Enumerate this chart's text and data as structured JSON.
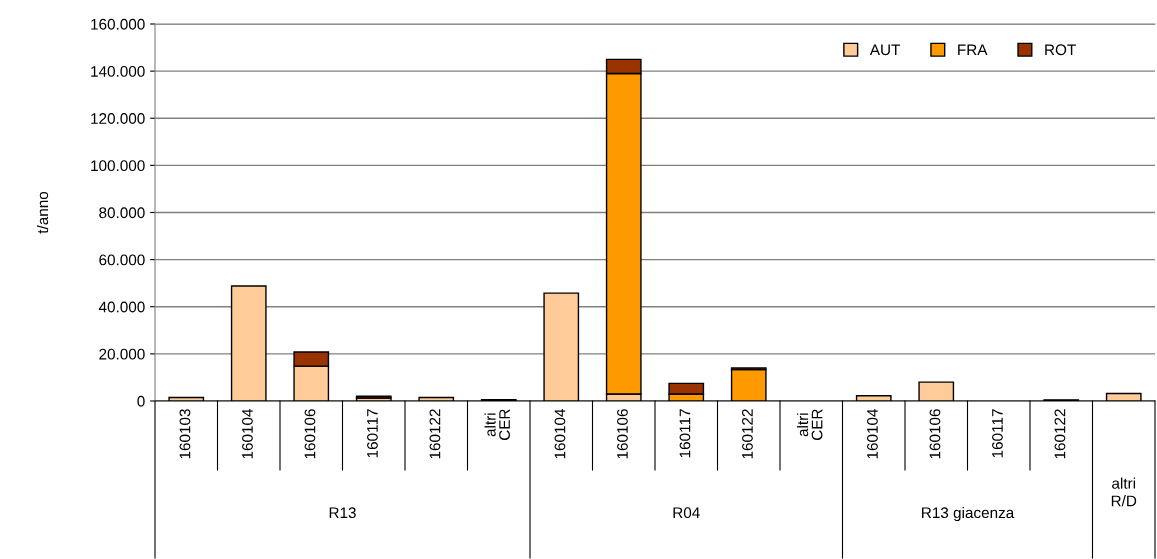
{
  "chart_data": {
    "type": "bar",
    "stacked": true,
    "ylabel": "t/anno",
    "categories": [
      "160103",
      "160104",
      "160106",
      "160117",
      "160122",
      "altri\nCER",
      "160104",
      "160106",
      "160117",
      "160122",
      "altri\nCER",
      "160104",
      "160106",
      "160117",
      "160122",
      null
    ],
    "series": [
      {
        "name": "AUT",
        "color": "#ffcc99",
        "values": [
          1500,
          48800,
          14800,
          1300,
          1500,
          null,
          45800,
          3000,
          null,
          null,
          null,
          2200,
          8000,
          null,
          null,
          3200
        ]
      },
      {
        "name": "FRA",
        "color": "#ff9900",
        "values": [
          null,
          null,
          null,
          null,
          null,
          null,
          null,
          136000,
          3000,
          13300,
          null,
          null,
          null,
          null,
          null,
          null
        ]
      },
      {
        "name": "ROT",
        "color": "#993300",
        "values": [
          null,
          null,
          6000,
          700,
          null,
          600,
          null,
          6000,
          4500,
          700,
          null,
          null,
          null,
          null,
          500,
          null
        ]
      }
    ],
    "ylim": [
      0,
      160000
    ],
    "yticks": [
      {
        "value": 0,
        "label": "0"
      },
      {
        "value": 20000,
        "label": "20.000"
      },
      {
        "value": 40000,
        "label": "40.000"
      },
      {
        "value": 60000,
        "label": "60.000"
      },
      {
        "value": 80000,
        "label": "80.000"
      },
      {
        "value": 100000,
        "label": "100.000"
      },
      {
        "value": 120000,
        "label": "120.000"
      },
      {
        "value": 140000,
        "label": "140.000"
      },
      {
        "value": 160000,
        "label": "160.000"
      }
    ],
    "grid": "y",
    "legend": "top right",
    "annotations": [
      "R13",
      "R04",
      "R13 giacenza",
      "altri\nR/D"
    ]
  }
}
